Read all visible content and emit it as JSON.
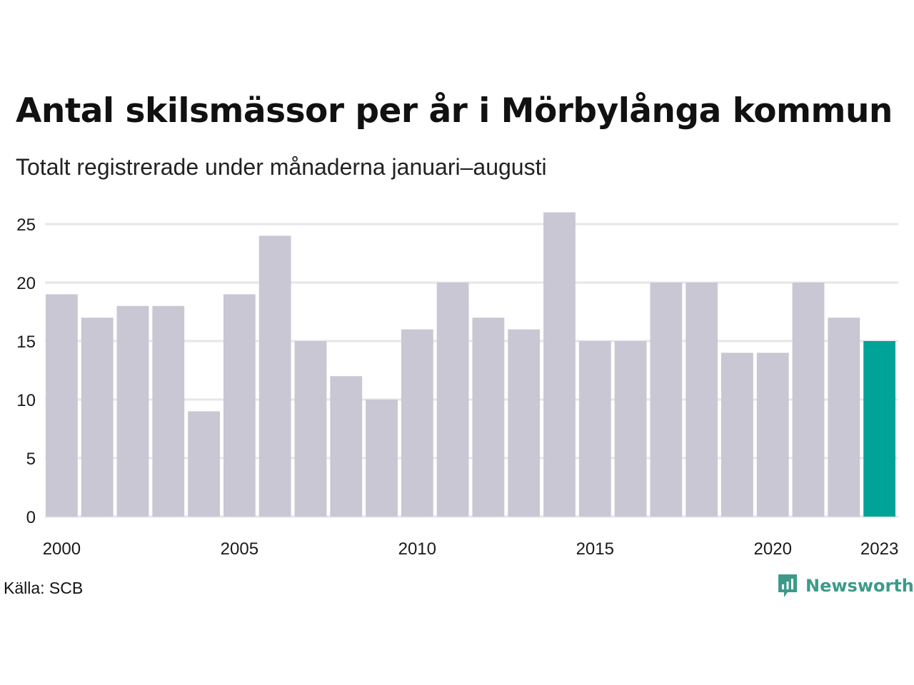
{
  "header": {
    "title": "Antal skilsmässor per år i Mörbylånga kommun",
    "subtitle": "Totalt registrerade under månaderna januari–augusti"
  },
  "footer": {
    "source": "Källa: SCB",
    "brand": "Newsworthy"
  },
  "colors": {
    "bar": "#c8c7d3",
    "highlight": "#00a398",
    "grid": "#e6e6eb",
    "brand": "#3d9a8a"
  },
  "chart_data": {
    "type": "bar",
    "categories": [
      "2000",
      "2001",
      "2002",
      "2003",
      "2004",
      "2005",
      "2006",
      "2007",
      "2008",
      "2009",
      "2010",
      "2011",
      "2012",
      "2013",
      "2014",
      "2015",
      "2016",
      "2017",
      "2018",
      "2019",
      "2020",
      "2021",
      "2022",
      "2023"
    ],
    "values": [
      19,
      17,
      18,
      18,
      9,
      19,
      24,
      15,
      12,
      10,
      16,
      20,
      17,
      16,
      26,
      15,
      15,
      20,
      20,
      14,
      14,
      20,
      17,
      15
    ],
    "highlight_index": 23,
    "x_tick_labels": [
      "2000",
      "2005",
      "2010",
      "2015",
      "2020",
      "2023"
    ],
    "y_ticks": [
      0,
      5,
      10,
      15,
      20,
      25
    ],
    "ylim": [
      0,
      26
    ],
    "grid": true,
    "xlabel": "",
    "ylabel": ""
  }
}
